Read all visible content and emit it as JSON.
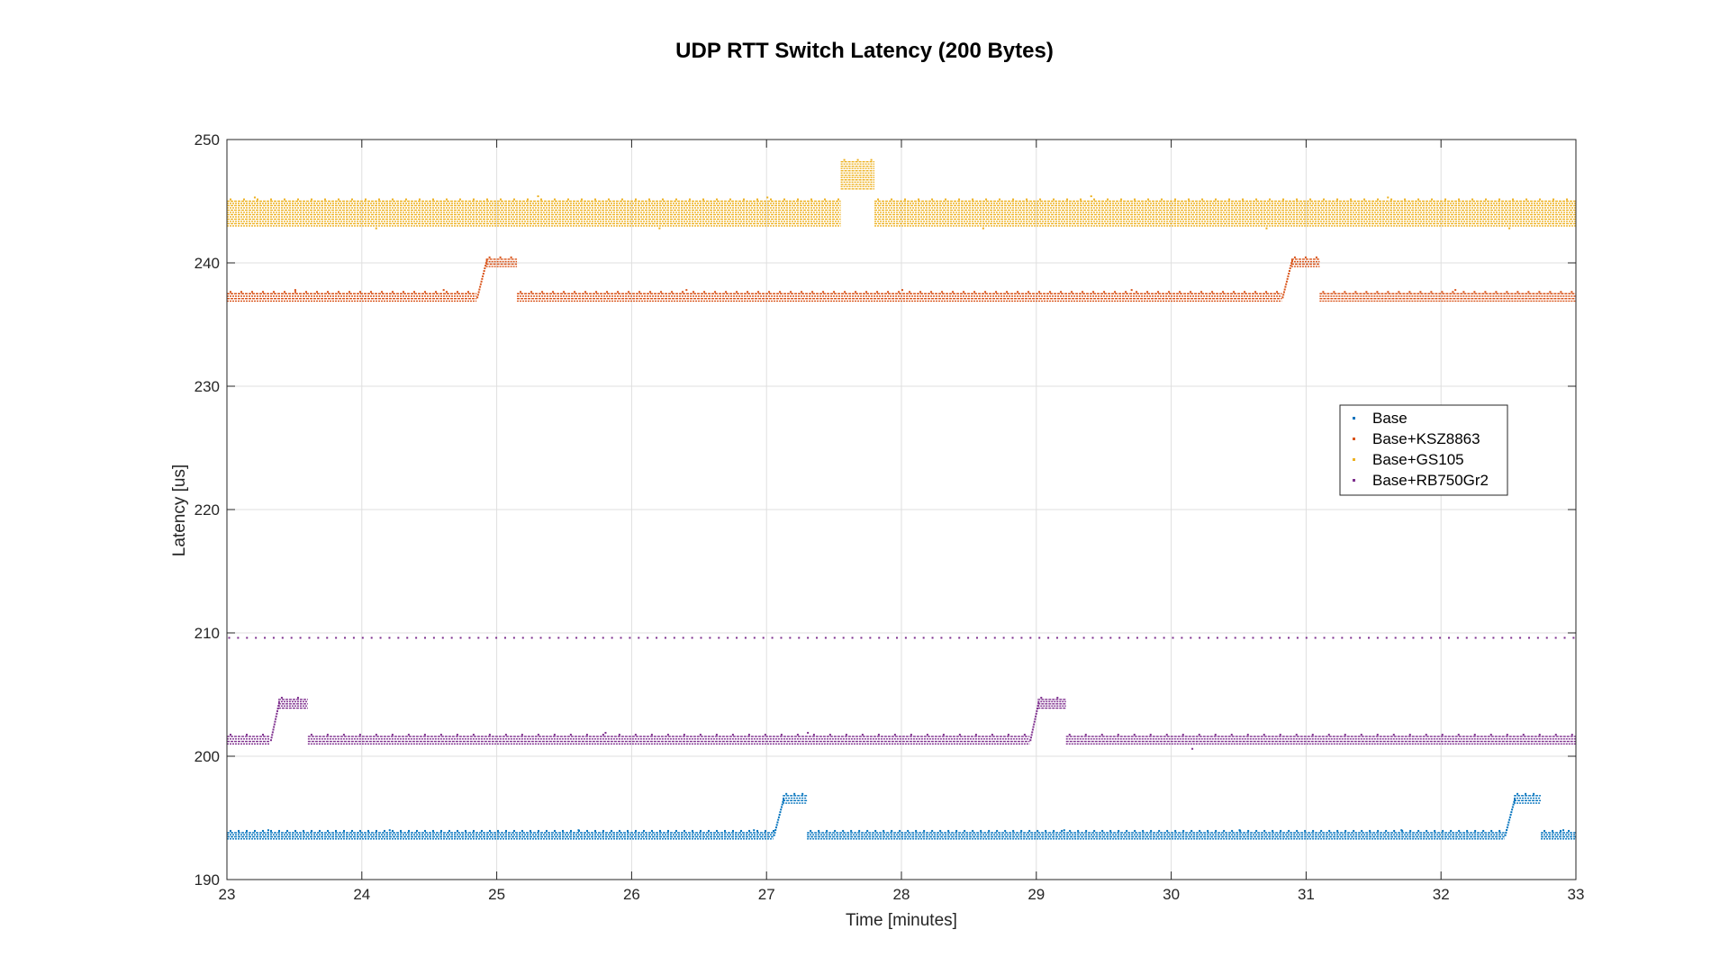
{
  "chart_data": {
    "type": "scatter",
    "title": "UDP RTT Switch Latency (200 Bytes)",
    "xlabel": "Time [minutes]",
    "ylabel": "Latency [us]",
    "xlim": [
      23,
      33
    ],
    "ylim": [
      190,
      250
    ],
    "xticks": [
      23,
      24,
      25,
      26,
      27,
      28,
      29,
      30,
      31,
      32,
      33
    ],
    "yticks": [
      190,
      200,
      210,
      220,
      230,
      240,
      250
    ],
    "grid": true,
    "legend_position": "right",
    "series": [
      {
        "name": "Base",
        "color": "#0072BD",
        "segments": [
          {
            "x0": 23.0,
            "x1": 27.05,
            "band": [
              193.3,
              193.8
            ]
          },
          {
            "x0": 27.05,
            "x1": 27.12,
            "band": [
              193.6,
              196.5
            ],
            "ramp": true
          },
          {
            "x0": 27.12,
            "x1": 27.3,
            "band": [
              196.2,
              196.8
            ]
          },
          {
            "x0": 27.3,
            "x1": 32.47,
            "band": [
              193.3,
              193.8
            ]
          },
          {
            "x0": 32.47,
            "x1": 32.54,
            "band": [
              193.6,
              196.5
            ],
            "ramp": true
          },
          {
            "x0": 32.54,
            "x1": 32.74,
            "band": [
              196.2,
              196.8
            ]
          },
          {
            "x0": 32.74,
            "x1": 33.0,
            "band": [
              193.3,
              193.8
            ]
          }
        ],
        "outliers": [
          [
            23.3,
            194.0
          ],
          [
            24.2,
            194.0
          ],
          [
            25.6,
            194.0
          ],
          [
            26.9,
            194.0
          ],
          [
            29.2,
            194.0
          ],
          [
            30.5,
            194.0
          ],
          [
            31.7,
            194.0
          ],
          [
            32.9,
            194.0
          ]
        ]
      },
      {
        "name": "Base+KSZ8863",
        "color": "#D95319",
        "segments": [
          {
            "x0": 23.0,
            "x1": 24.85,
            "band": [
              236.9,
              237.5
            ]
          },
          {
            "x0": 24.85,
            "x1": 24.92,
            "band": [
              237.2,
              240.2
            ],
            "ramp": true
          },
          {
            "x0": 24.92,
            "x1": 25.15,
            "band": [
              239.7,
              240.3
            ]
          },
          {
            "x0": 25.15,
            "x1": 30.82,
            "band": [
              236.9,
              237.5
            ]
          },
          {
            "x0": 30.82,
            "x1": 30.89,
            "band": [
              237.2,
              240.2
            ],
            "ramp": true
          },
          {
            "x0": 30.89,
            "x1": 31.1,
            "band": [
              239.7,
              240.3
            ]
          },
          {
            "x0": 31.1,
            "x1": 33.0,
            "band": [
              236.9,
              237.5
            ]
          }
        ],
        "outliers": [
          [
            23.5,
            237.8
          ],
          [
            24.6,
            237.8
          ],
          [
            26.4,
            237.8
          ],
          [
            28.0,
            237.8
          ],
          [
            29.7,
            237.8
          ],
          [
            32.1,
            237.8
          ]
        ]
      },
      {
        "name": "Base+GS105",
        "color": "#EDB120",
        "segments": [
          {
            "x0": 23.0,
            "x1": 27.55,
            "band": [
              243.0,
              245.0
            ]
          },
          {
            "x0": 27.55,
            "x1": 27.8,
            "band": [
              246.0,
              248.2
            ]
          },
          {
            "x0": 27.8,
            "x1": 33.0,
            "band": [
              243.0,
              245.0
            ]
          }
        ],
        "outliers": [
          [
            23.2,
            245.3
          ],
          [
            24.1,
            242.8
          ],
          [
            25.3,
            245.4
          ],
          [
            26.2,
            242.8
          ],
          [
            27.0,
            245.3
          ],
          [
            28.6,
            242.8
          ],
          [
            29.4,
            245.4
          ],
          [
            30.7,
            242.8
          ],
          [
            31.6,
            245.3
          ],
          [
            32.5,
            242.8
          ]
        ]
      },
      {
        "name": "Base+RB750Gr2",
        "color": "#7E2F8E",
        "segments": [
          {
            "x0": 23.0,
            "x1": 23.32,
            "band": [
              201.0,
              201.6
            ]
          },
          {
            "x0": 23.32,
            "x1": 23.38,
            "band": [
              201.3,
              204.3
            ],
            "ramp": true
          },
          {
            "x0": 23.38,
            "x1": 23.6,
            "band": [
              203.9,
              204.6
            ]
          },
          {
            "x0": 23.6,
            "x1": 28.95,
            "band": [
              201.0,
              201.6
            ]
          },
          {
            "x0": 28.95,
            "x1": 29.01,
            "band": [
              201.3,
              204.3
            ],
            "ramp": true
          },
          {
            "x0": 29.01,
            "x1": 29.22,
            "band": [
              203.9,
              204.6
            ]
          },
          {
            "x0": 29.22,
            "x1": 33.0,
            "band": [
              201.0,
              201.6
            ]
          }
        ],
        "periodic": {
          "start": 23.0,
          "end": 33.0,
          "step": 0.066,
          "y": 209.6
        },
        "outliers": [
          [
            30.15,
            200.6
          ],
          [
            27.3,
            201.9
          ],
          [
            25.8,
            201.9
          ]
        ]
      }
    ]
  }
}
